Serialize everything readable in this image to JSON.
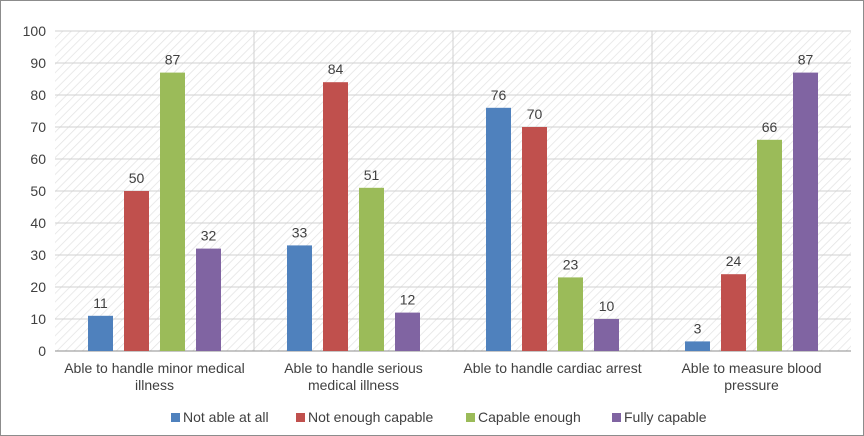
{
  "chart_data": {
    "type": "bar",
    "title": "",
    "xlabel": "",
    "ylabel": "",
    "ylim": [
      0,
      100
    ],
    "yticks": [
      0,
      10,
      20,
      30,
      40,
      50,
      60,
      70,
      80,
      90,
      100
    ],
    "grid": true,
    "legend_position": "bottom",
    "categories": [
      [
        "Able to handle minor medical",
        "illness"
      ],
      [
        "Able to handle serious",
        "medical illness"
      ],
      [
        "Able to handle cardiac arrest"
      ],
      [
        "Able to measure blood",
        "pressure"
      ]
    ],
    "series": [
      {
        "name": "Not able at all",
        "color": "#4f81bd",
        "values": [
          11,
          33,
          76,
          3
        ]
      },
      {
        "name": "Not enough capable",
        "color": "#c0504d",
        "values": [
          50,
          84,
          70,
          24
        ]
      },
      {
        "name": "Capable enough",
        "color": "#9bbb59",
        "values": [
          87,
          51,
          23,
          66
        ]
      },
      {
        "name": "Fully capable",
        "color": "#8064a2",
        "values": [
          32,
          12,
          10,
          87
        ]
      }
    ]
  }
}
